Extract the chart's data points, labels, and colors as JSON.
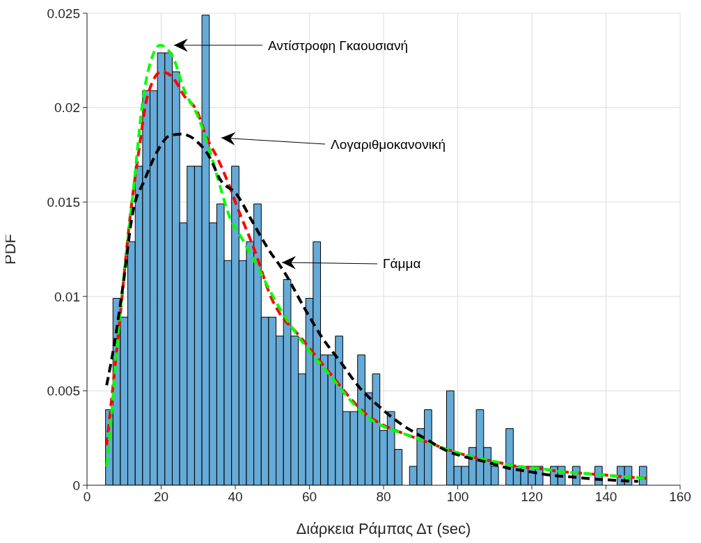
{
  "chart_data": {
    "type": "histogram",
    "xlabel": "Διάρκεια Ράμπας Δτ (sec)",
    "ylabel": "PDF",
    "bins": [
      5,
      7,
      9,
      11,
      13,
      15,
      17,
      19,
      21,
      23,
      25,
      27,
      29,
      31,
      33,
      35,
      37,
      39,
      41,
      43,
      45,
      47,
      49,
      51,
      53,
      55,
      57,
      59,
      61,
      63,
      65,
      67,
      69,
      71,
      73,
      75,
      77,
      79,
      81,
      83,
      85,
      87,
      89,
      91,
      93,
      95,
      97,
      99,
      101,
      103,
      105,
      107,
      109,
      111,
      113,
      115,
      117,
      119,
      121,
      123,
      125,
      127,
      129,
      131,
      133,
      135,
      137,
      139,
      141,
      143,
      145,
      147,
      149,
      151
    ],
    "values": [
      0.004,
      0.0099,
      0.0089,
      0.0129,
      0.0169,
      0.0209,
      0.0209,
      0.0229,
      0.0229,
      0.0219,
      0.0139,
      0.0169,
      0.0169,
      0.0249,
      0.0139,
      0.0149,
      0.0119,
      0.0169,
      0.0119,
      0.0129,
      0.0149,
      0.0089,
      0.0089,
      0.0079,
      0.0109,
      0.0079,
      0.0059,
      0.0099,
      0.0129,
      0.0069,
      0.0069,
      0.0079,
      0.0039,
      0.0039,
      0.0069,
      0.0049,
      0.0059,
      0.0029,
      0.0039,
      0.0019,
      0,
      0.001,
      0.003,
      0.004,
      0,
      0,
      0.005,
      0.001,
      0.001,
      0.002,
      0.004,
      0.002,
      0.001,
      0,
      0.003,
      0.001,
      0.001,
      0.001,
      0.001,
      0,
      0.001,
      0.001,
      0,
      0.001,
      0,
      0,
      0.001,
      0,
      0,
      0.001,
      0.001,
      0,
      0.001
    ],
    "color": "#66aad7",
    "series": [
      {
        "type": "line",
        "color": "#ff0000",
        "x": [
          5.3,
          7.3,
          9,
          11.5,
          13.9,
          16.3,
          20.1,
          23.1,
          26.3,
          29.7,
          32.1,
          35.5,
          37.9,
          40.4,
          45.3,
          50,
          52,
          56.9,
          64.4,
          75.1,
          87.3,
          93,
          98.6,
          104,
          110,
          116,
          121.7,
          127,
          133.7,
          139,
          145.5,
          151
        ],
        "values": [
          0.0021,
          0.0058,
          0.0091,
          0.014,
          0.0176,
          0.0206,
          0.0219,
          0.0216,
          0.0206,
          0.0198,
          0.0185,
          0.0172,
          0.0161,
          0.0148,
          0.0124,
          0.0098,
          0.0091,
          0.008,
          0.0062,
          0.0038,
          0.0026,
          0.0022,
          0.0018,
          0.0015,
          0.00125,
          0.001,
          0.0009,
          0.00074,
          0.00063,
          0.00055,
          0.00044,
          0.00037
        ]
      },
      {
        "type": "line",
        "color": "#00ff00",
        "x": [
          5.3,
          6.6,
          8.1,
          10.7,
          12.8,
          14.8,
          18,
          19.7,
          23.1,
          26.3,
          30,
          33,
          35.5,
          38.3,
          42,
          46.2,
          51,
          56.9,
          64.4,
          75.1,
          87.3,
          93,
          98.6,
          104,
          110,
          116,
          121.7,
          127,
          133.7,
          139,
          145.5,
          151
        ],
        "values": [
          0.001,
          0.0037,
          0.0074,
          0.0124,
          0.0162,
          0.02,
          0.0229,
          0.0233,
          0.0227,
          0.0209,
          0.0195,
          0.0178,
          0.0161,
          0.0143,
          0.013,
          0.0115,
          0.0097,
          0.0079,
          0.0061,
          0.0037,
          0.0026,
          0.0022,
          0.0018,
          0.0015,
          0.00125,
          0.001,
          0.0009,
          0.00074,
          0.00063,
          0.00055,
          0.00044,
          0.00037
        ]
      },
      {
        "type": "line",
        "color": "#000000",
        "x": [
          5.3,
          7.3,
          9.8,
          12.2,
          15.6,
          19,
          22.2,
          25.5,
          29.7,
          33,
          35.9,
          40.4,
          44.5,
          48.6,
          53.5,
          58.6,
          63.5,
          68.5,
          73.4,
          79.2,
          85,
          91,
          97.3,
          102,
          107.4,
          113,
          118.7,
          124.3,
          130.5,
          136.7,
          142.4,
          148.7
        ],
        "values": [
          0.0053,
          0.0074,
          0.0107,
          0.0143,
          0.0162,
          0.0177,
          0.0185,
          0.0186,
          0.0182,
          0.0174,
          0.0162,
          0.0154,
          0.014,
          0.0126,
          0.0112,
          0.0094,
          0.0078,
          0.0065,
          0.0052,
          0.0041,
          0.0032,
          0.0025,
          0.0018,
          0.0015,
          0.00125,
          0.00093,
          0.00074,
          0.00055,
          0.00044,
          0.00033,
          0.00026,
          0.0002
        ]
      }
    ],
    "line_style": "dashed",
    "annotations": [
      "Αντίστροφη Γκαουσιανή",
      "Λογαριθμοκανονική",
      {
        "text": "Γάμμα",
        "x": 52.6,
        "y": 0.0118
      }
    ],
    "xlim": [
      0,
      160
    ],
    "xticks": [
      0,
      20,
      40,
      60,
      80,
      100,
      120,
      140,
      160
    ],
    "ylim": [
      0,
      0.025
    ],
    "yticks": [
      0,
      0.005,
      0.01,
      0.015,
      0.02,
      0.025
    ],
    "grid": true
  }
}
